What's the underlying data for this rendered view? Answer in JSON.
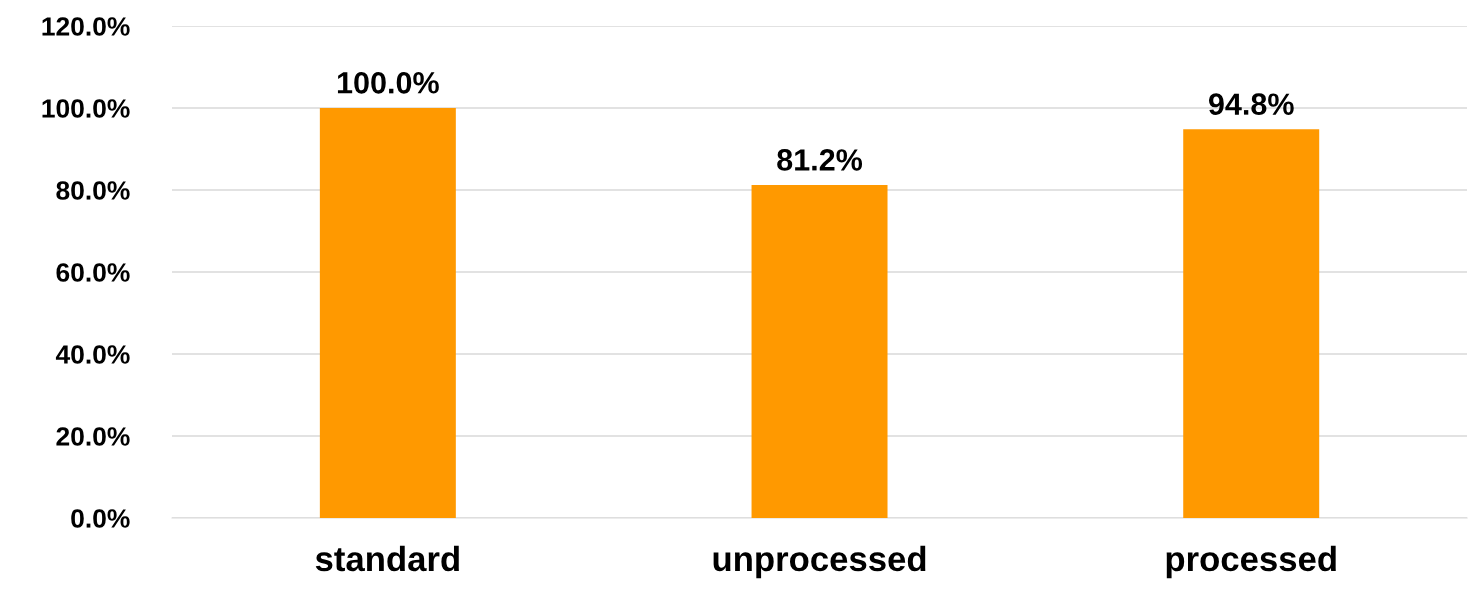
{
  "chart_data": {
    "type": "bar",
    "categories": [
      "standard",
      "unprocessed",
      "processed"
    ],
    "values": [
      100,
      81.2,
      94.8
    ],
    "value_labels": [
      "100.0%",
      "81.2%",
      "94.8%"
    ],
    "color": "#ff9900",
    "ylim": [
      0,
      120
    ],
    "yticks": [
      {
        "value": 0,
        "label": "0.0%"
      },
      {
        "value": 20,
        "label": "20.0%"
      },
      {
        "value": 40,
        "label": "40.0%"
      },
      {
        "value": 60,
        "label": "60.0%"
      },
      {
        "value": 80,
        "label": "80.0%"
      },
      {
        "value": 100,
        "label": "100.0%"
      },
      {
        "value": 120,
        "label": "120.0%"
      }
    ],
    "grid": "y"
  }
}
